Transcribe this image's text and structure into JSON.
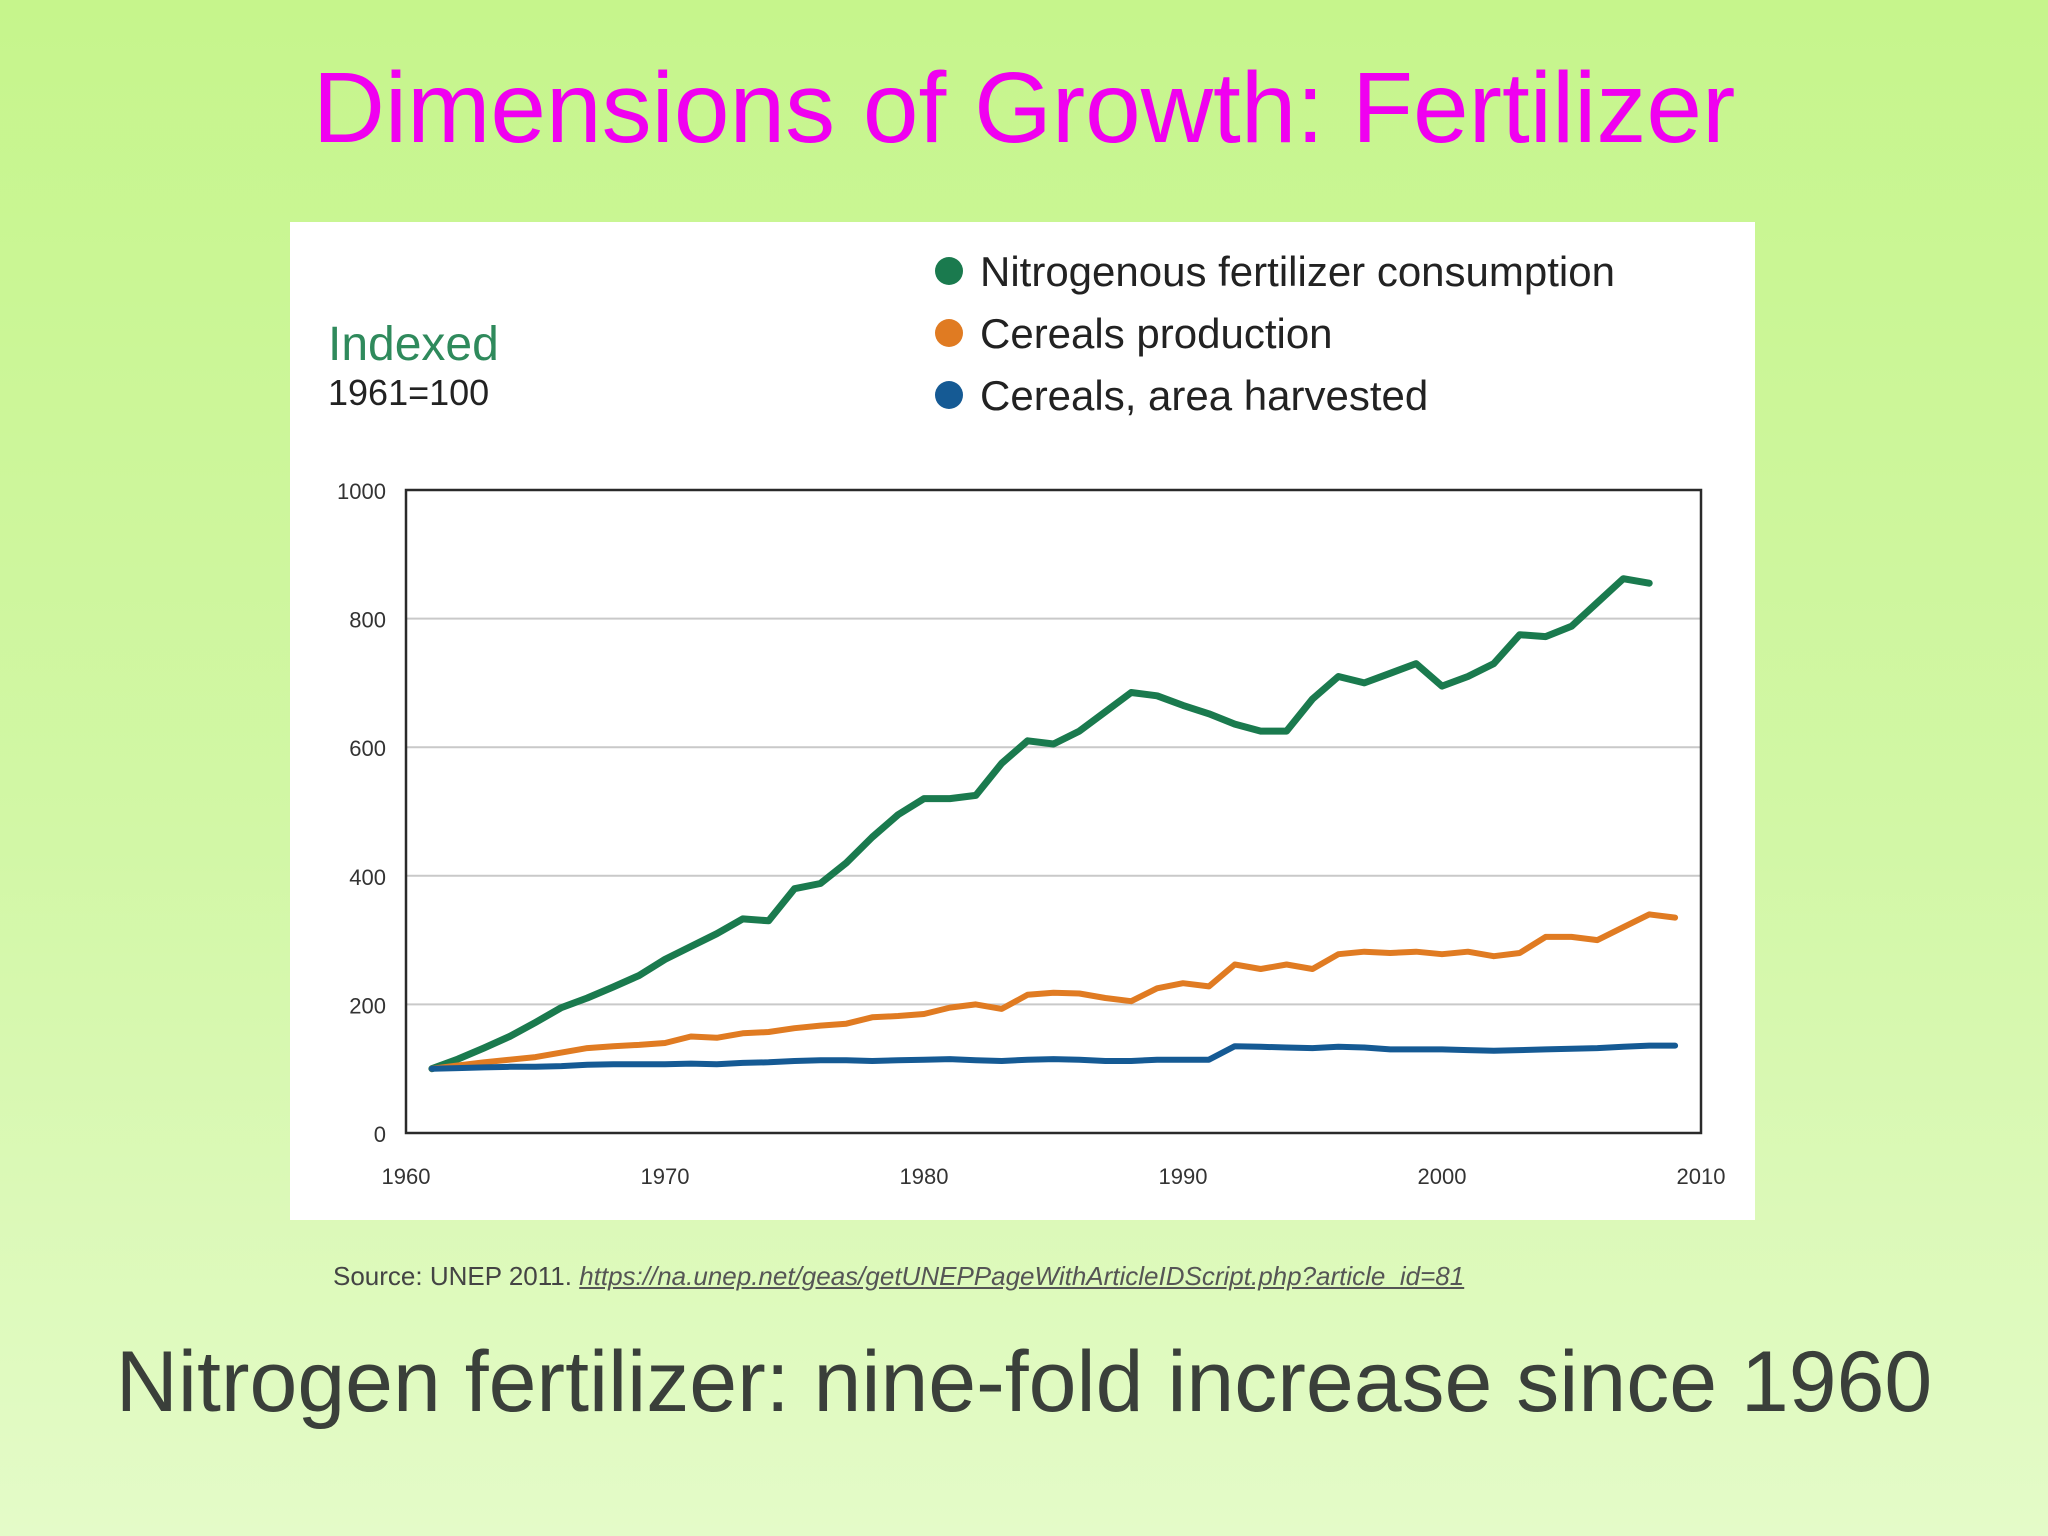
{
  "slide": {
    "title": "Dimensions of Growth: Fertilizer",
    "source_prefix": "Source: UNEP 2011. ",
    "source_link": "https://na.unep.net/geas/getUNEPPageWithArticleIDScript.php?article_id=81",
    "footer": "Nitrogen fertilizer: nine-fold increase since 1960",
    "colors": {
      "title": "#f000f0",
      "background_top": "#c6f58c",
      "background_bottom": "#e4fbc8",
      "footer": "#3a3f3a"
    }
  },
  "chart_data": {
    "type": "line",
    "title": "Indexed",
    "subtitle": "1961=100",
    "xlabel": "",
    "ylabel": "",
    "xlim": [
      1960,
      2010
    ],
    "ylim": [
      0,
      1000
    ],
    "xticks": [
      1960,
      1970,
      1980,
      1990,
      2000,
      2010
    ],
    "yticks": [
      0,
      200,
      400,
      600,
      800,
      1000
    ],
    "grid": true,
    "legend_position": "top-right",
    "series": [
      {
        "name": "Nitrogenous fertilizer consumption",
        "color": "#1a7a4e",
        "x": [
          1961,
          1962,
          1963,
          1964,
          1965,
          1966,
          1967,
          1968,
          1969,
          1970,
          1971,
          1972,
          1973,
          1974,
          1975,
          1976,
          1977,
          1978,
          1979,
          1980,
          1981,
          1982,
          1983,
          1984,
          1985,
          1986,
          1987,
          1988,
          1989,
          1990,
          1991,
          1992,
          1993,
          1994,
          1995,
          1996,
          1997,
          1998,
          1999,
          2000,
          2001,
          2002,
          2003,
          2004,
          2005,
          2006,
          2007,
          2008
        ],
        "values": [
          100,
          115,
          132,
          150,
          172,
          195,
          210,
          227,
          245,
          270,
          290,
          310,
          333,
          330,
          380,
          388,
          420,
          460,
          495,
          520,
          520,
          525,
          575,
          610,
          605,
          625,
          655,
          685,
          680,
          665,
          652,
          636,
          625,
          625,
          675,
          710,
          700,
          715,
          730,
          695,
          710,
          730,
          775,
          772,
          788,
          825,
          862,
          855
        ]
      },
      {
        "name": "Cereals production",
        "color": "#e07b22",
        "x": [
          1961,
          1962,
          1963,
          1964,
          1965,
          1966,
          1967,
          1968,
          1969,
          1970,
          1971,
          1972,
          1973,
          1974,
          1975,
          1976,
          1977,
          1978,
          1979,
          1980,
          1981,
          1982,
          1983,
          1984,
          1985,
          1986,
          1987,
          1988,
          1989,
          1990,
          1991,
          1992,
          1993,
          1994,
          1995,
          1996,
          1997,
          1998,
          1999,
          2000,
          2001,
          2002,
          2003,
          2004,
          2005,
          2006,
          2007,
          2008,
          2009
        ],
        "values": [
          100,
          105,
          110,
          114,
          118,
          125,
          132,
          135,
          137,
          140,
          150,
          148,
          155,
          157,
          163,
          167,
          170,
          180,
          182,
          185,
          195,
          200,
          193,
          215,
          218,
          217,
          210,
          205,
          225,
          233,
          228,
          262,
          255,
          262,
          255,
          278,
          282,
          280,
          282,
          278,
          282,
          275,
          280,
          305,
          305,
          300,
          320,
          340,
          335
        ]
      },
      {
        "name": "Cereals, area harvested",
        "color": "#155a94",
        "x": [
          1961,
          1962,
          1963,
          1964,
          1965,
          1966,
          1967,
          1968,
          1969,
          1970,
          1971,
          1972,
          1973,
          1974,
          1975,
          1976,
          1977,
          1978,
          1979,
          1980,
          1981,
          1982,
          1983,
          1984,
          1985,
          1986,
          1987,
          1988,
          1989,
          1990,
          1991,
          1992,
          1993,
          1994,
          1995,
          1996,
          1997,
          1998,
          1999,
          2000,
          2001,
          2002,
          2003,
          2004,
          2005,
          2006,
          2007,
          2008,
          2009
        ],
        "values": [
          100,
          101,
          102,
          103,
          103,
          104,
          106,
          107,
          107,
          107,
          108,
          107,
          109,
          110,
          112,
          113,
          113,
          112,
          113,
          114,
          115,
          113,
          112,
          114,
          115,
          114,
          112,
          112,
          114,
          114,
          114,
          135,
          134,
          133,
          132,
          134,
          133,
          130,
          130,
          130,
          129,
          128,
          129,
          130,
          131,
          132,
          134,
          136,
          136
        ]
      }
    ]
  }
}
